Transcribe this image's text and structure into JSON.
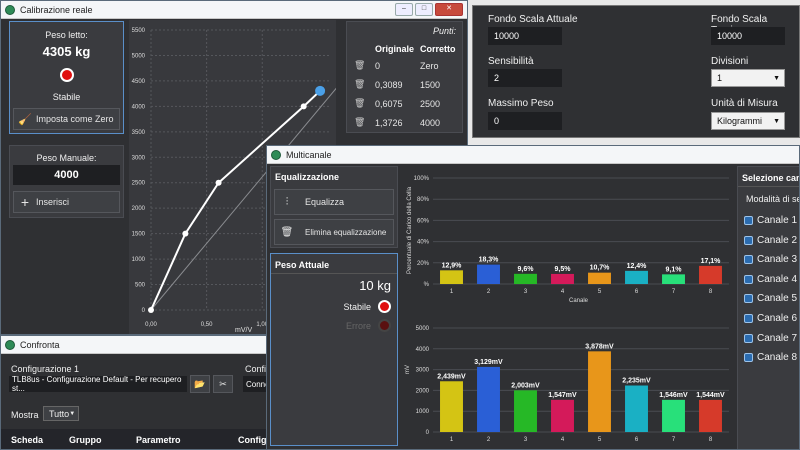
{
  "cal": {
    "title": "Calibrazione reale",
    "peso_letto_label": "Peso letto:",
    "peso_letto_value": "4305 kg",
    "stato": "Stabile",
    "zero_button": "Imposta come Zero",
    "peso_manuale_label": "Peso Manuale:",
    "peso_manuale_value": "4000",
    "inserisci_button": "Inserisci",
    "punti_label": "Punti:",
    "col_originale": "Originale",
    "col_corretto": "Corretto",
    "punti": [
      {
        "originale": "0",
        "corretto": "Zero"
      },
      {
        "originale": "0,3089",
        "corretto": "1500"
      },
      {
        "originale": "0,6075",
        "corretto": "2500"
      },
      {
        "originale": "1,3726",
        "corretto": "4000"
      }
    ],
    "chart_data": {
      "type": "line",
      "xlabel": "mV/V",
      "y_ticks": [
        "5500",
        "5000",
        "4500",
        "4000",
        "3500",
        "3000",
        "2500",
        "2000",
        "1500",
        "1000",
        "500",
        "0"
      ],
      "x_ticks": [
        "0,00",
        "0,50",
        "1,00"
      ],
      "ylim": [
        0,
        5500
      ],
      "xlim": [
        0,
        1.6
      ],
      "series": [
        {
          "x": [
            0,
            0.3089,
            0.6075,
            1.3726
          ],
          "y": [
            0,
            1500,
            2500,
            4000
          ]
        }
      ],
      "current_point": {
        "x": 1.52,
        "y": 4305
      },
      "diagonal": {
        "x": [
          0,
          1.95
        ],
        "y": [
          0,
          5100
        ]
      }
    }
  },
  "fs": {
    "fondo_scala_attuale_label": "Fondo Scala Attuale",
    "fondo_scala_attuale_value": "10000",
    "fondo_scala_teorico_label": "Fondo Scala Teorico",
    "fondo_scala_teorico_value": "10000",
    "sensibilita_label": "Sensibilità",
    "sensibilita_value": "2",
    "divisioni_label": "Divisioni",
    "divisioni_value": "1",
    "massimo_peso_label": "Massimo Peso",
    "massimo_peso_value": "0",
    "unita_label": "Unità di Misura",
    "unita_value": "Kilogrammi"
  },
  "conf": {
    "title": "Confronta",
    "config1_label": "Configurazione 1",
    "config1_value": "TLB8us - Configurazione Default - Per recupero st...",
    "config2_label": "Config",
    "config2_value": "Conne",
    "mostra_label": "Mostra",
    "mostra_value": "Tutto",
    "columns": [
      "Scheda",
      "Gruppo",
      "Parametro",
      "Config"
    ]
  },
  "multi": {
    "title": "Multicanale",
    "equalizzazione_label": "Equalizzazione",
    "equalizza_button": "Equalizza",
    "elimina_button": "Elimina equalizzazione",
    "peso_attuale_label": "Peso Attuale",
    "peso_attuale_value": "10 kg",
    "stabile": "Stabile",
    "errore": "Errore",
    "selezione_label": "Selezione can",
    "modalita_label": "Modalità di se",
    "canali": [
      "Canale 1",
      "Canale 2",
      "Canale 3",
      "Canale 4",
      "Canale 5",
      "Canale 6",
      "Canale 7",
      "Canale 8"
    ],
    "bar_colors": [
      "#d4c414",
      "#2a5fd6",
      "#26b826",
      "#d41a5a",
      "#e8961a",
      "#1ab0c4",
      "#28e07a",
      "#d63a2a"
    ],
    "chart_data": [
      {
        "type": "bar",
        "ylabel": "Percentuale di Carico della Cella",
        "xlabel": "Canale",
        "categories": [
          "1",
          "2",
          "3",
          "4",
          "5",
          "6",
          "7",
          "8"
        ],
        "values": [
          12.9,
          18.3,
          9.6,
          9.5,
          10.7,
          12.4,
          9.1,
          17.1
        ],
        "value_labels": [
          "12,9%",
          "18,3%",
          "9,6%",
          "9,5%",
          "10,7%",
          "12,4%",
          "9,1%",
          "17,1%"
        ],
        "y_ticks": [
          "100%",
          "80%",
          "60%",
          "40%",
          "20%",
          "%"
        ],
        "ylim": [
          0,
          100
        ]
      },
      {
        "type": "bar",
        "ylabel": "mV",
        "categories": [
          "1",
          "2",
          "3",
          "4",
          "5",
          "6",
          "7",
          "8"
        ],
        "values": [
          2.439,
          3.129,
          2.003,
          1.547,
          3.878,
          2.235,
          1.546,
          1.544
        ],
        "value_labels": [
          "2,439mV",
          "3,129mV",
          "2,003mV",
          "1,547mV",
          "3,878mV",
          "2,235mV",
          "1,546mV",
          "1,544mV"
        ],
        "y_ticks": [
          "5000",
          "4000",
          "3000",
          "2000",
          "1000",
          "0"
        ],
        "ylim": [
          0,
          5
        ]
      }
    ]
  }
}
